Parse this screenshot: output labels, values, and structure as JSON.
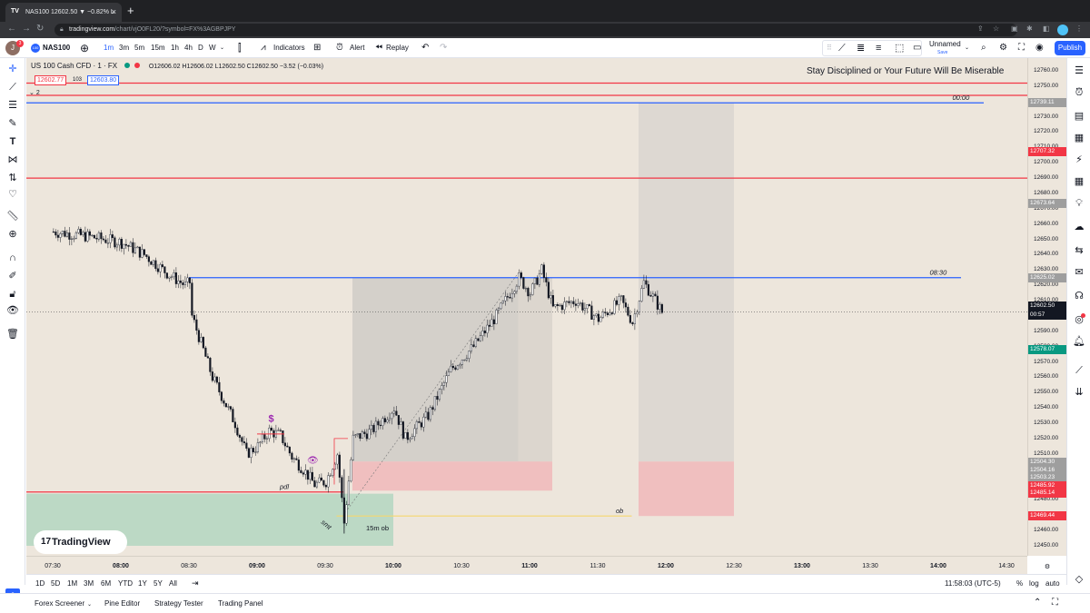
{
  "browser": {
    "tab_title": "NAS100 12602.50 ▼ −0.82% L",
    "url_domain": "tradingview.com",
    "url_path": "/chart/vjO0FL20/?symbol=FX%3AGBPJPY"
  },
  "toolbar": {
    "avatar": "J",
    "symbol": "NAS100",
    "intervals": [
      "1m",
      "3m",
      "5m",
      "15m",
      "1h",
      "4h",
      "D",
      "W"
    ],
    "active_interval": "1m",
    "indicators_label": "Indicators",
    "alert_label": "Alert",
    "replay_label": "Replay",
    "layout_name": "Unnamed",
    "layout_status": "Save",
    "publish_label": "Publish"
  },
  "legend": {
    "title": "US 100 Cash CFD · 1 · FX",
    "ohlc": "O12606.02  H12606.02  L12602.50  C12602.50  −3.52 (−0.03%)",
    "bid": "12602.77",
    "spread": "103",
    "ask": "12603.80",
    "indicators_count": "2"
  },
  "motto": "Stay Disciplined or Your Future Will Be Miserable",
  "price_axis": {
    "ticks": [
      "12760.00",
      "12750.00",
      "12740.00",
      "12730.00",
      "12720.00",
      "12710.00",
      "12700.00",
      "12690.00",
      "12680.00",
      "12670.00",
      "12660.00",
      "12650.00",
      "12640.00",
      "12630.00",
      "12620.00",
      "12610.00",
      "12600.00",
      "12590.00",
      "12580.00",
      "12570.00",
      "12560.00",
      "12550.00",
      "12540.00",
      "12530.00",
      "12520.00",
      "12510.00",
      "12500.00",
      "12490.00",
      "12480.00",
      "12470.00",
      "12460.00",
      "12450.00"
    ],
    "labels": [
      {
        "text": "12739.11",
        "color": "#9e9e9e",
        "price": 12739.11
      },
      {
        "text": "12707.32",
        "color": "#f23645",
        "price": 12707.32
      },
      {
        "text": "12673.64",
        "color": "#9e9e9e",
        "price": 12673.64
      },
      {
        "text": "12625.02",
        "color": "#9e9e9e",
        "price": 12625.02
      },
      {
        "text": "12602.50",
        "color": "#131722",
        "price": 12606.5
      },
      {
        "text": "00:57",
        "color": "#131722",
        "price": 12600.5
      },
      {
        "text": "12578.07",
        "color": "#089981",
        "price": 12578.07
      },
      {
        "text": "12504.30",
        "color": "#9e9e9e",
        "price": 12504.3
      },
      {
        "text": "12504.16",
        "color": "#9e9e9e",
        "price": 12499.3
      },
      {
        "text": "12503.23",
        "color": "#9e9e9e",
        "price": 12494.3
      },
      {
        "text": "12485.92",
        "color": "#f23645",
        "price": 12489.3
      },
      {
        "text": "12485.14",
        "color": "#f23645",
        "price": 12484.3
      },
      {
        "text": "12469.44",
        "color": "#f23645",
        "price": 12469.44
      }
    ]
  },
  "time_axis": {
    "ticks": [
      {
        "t": "07:30",
        "bold": false
      },
      {
        "t": "08:00",
        "bold": true
      },
      {
        "t": "08:30",
        "bold": false
      },
      {
        "t": "09:00",
        "bold": true
      },
      {
        "t": "09:30",
        "bold": false
      },
      {
        "t": "10:00",
        "bold": true
      },
      {
        "t": "10:30",
        "bold": false
      },
      {
        "t": "11:00",
        "bold": true
      },
      {
        "t": "11:30",
        "bold": false
      },
      {
        "t": "12:00",
        "bold": true
      },
      {
        "t": "12:30",
        "bold": false
      },
      {
        "t": "13:00",
        "bold": true
      },
      {
        "t": "13:30",
        "bold": false
      },
      {
        "t": "14:00",
        "bold": true
      },
      {
        "t": "14:30",
        "bold": false
      }
    ]
  },
  "chart_annotations": {
    "line_0000": "00:00",
    "line_0830": "08:30",
    "pdl": "pdl",
    "ob": "ob",
    "ob15": "15m ob",
    "smt": "smt"
  },
  "chart_data": {
    "type": "candlestick",
    "symbol": "US 100 Cash CFD",
    "interval": "1m",
    "ylim": [
      12445,
      12765
    ],
    "xlim": [
      "07:25",
      "14:35"
    ],
    "last_price": 12602.5,
    "close_path": [
      [
        "07:30",
        12655
      ],
      [
        "07:45",
        12652
      ],
      [
        "08:00",
        12648
      ],
      [
        "08:10",
        12640
      ],
      [
        "08:20",
        12628
      ],
      [
        "08:28",
        12620
      ],
      [
        "08:30",
        12622
      ],
      [
        "08:31",
        12600
      ],
      [
        "08:40",
        12560
      ],
      [
        "08:50",
        12530
      ],
      [
        "08:55",
        12510
      ],
      [
        "09:00",
        12515
      ],
      [
        "09:05",
        12525
      ],
      [
        "09:10",
        12522
      ],
      [
        "09:15",
        12508
      ],
      [
        "09:20",
        12500
      ],
      [
        "09:25",
        12490
      ],
      [
        "09:30",
        12492
      ],
      [
        "09:35",
        12510
      ],
      [
        "09:38",
        12465
      ],
      [
        "09:42",
        12520
      ],
      [
        "09:50",
        12525
      ],
      [
        "10:00",
        12540
      ],
      [
        "10:05",
        12520
      ],
      [
        "10:15",
        12535
      ],
      [
        "10:25",
        12565
      ],
      [
        "10:35",
        12580
      ],
      [
        "10:45",
        12600
      ],
      [
        "10:55",
        12625
      ],
      [
        "11:00",
        12615
      ],
      [
        "11:05",
        12630
      ],
      [
        "11:10",
        12605
      ],
      [
        "11:20",
        12610
      ],
      [
        "11:30",
        12598
      ],
      [
        "11:40",
        12610
      ],
      [
        "11:45",
        12596
      ],
      [
        "11:50",
        12622
      ],
      [
        "11:55",
        12610
      ],
      [
        "11:58",
        12602.5
      ]
    ],
    "horizontal_lines": [
      {
        "price": 12752,
        "color": "#f23645"
      },
      {
        "price": 12744,
        "color": "#f23645"
      },
      {
        "price": 12739.11,
        "color": "#2962ff",
        "label": "00:00"
      },
      {
        "price": 12690,
        "color": "#f23645"
      },
      {
        "price": 12625.02,
        "color": "#2962ff",
        "label": "08:30"
      },
      {
        "price": 12485.14,
        "color": "#f23645",
        "label": "pdl"
      },
      {
        "price": 12469.44,
        "color": "#f5d76e",
        "label": "ob"
      }
    ]
  },
  "watermark": "TradingView",
  "bottom_bar": {
    "ranges": [
      "1D",
      "5D",
      "1M",
      "3M",
      "6M",
      "YTD",
      "1Y",
      "5Y",
      "All"
    ],
    "clock": "11:58:03 (UTC-5)",
    "pct": "%",
    "log": "log",
    "auto": "auto"
  },
  "footer": {
    "tabs": [
      "Forex Screener",
      "Pine Editor",
      "Strategy Tester",
      "Trading Panel"
    ]
  }
}
